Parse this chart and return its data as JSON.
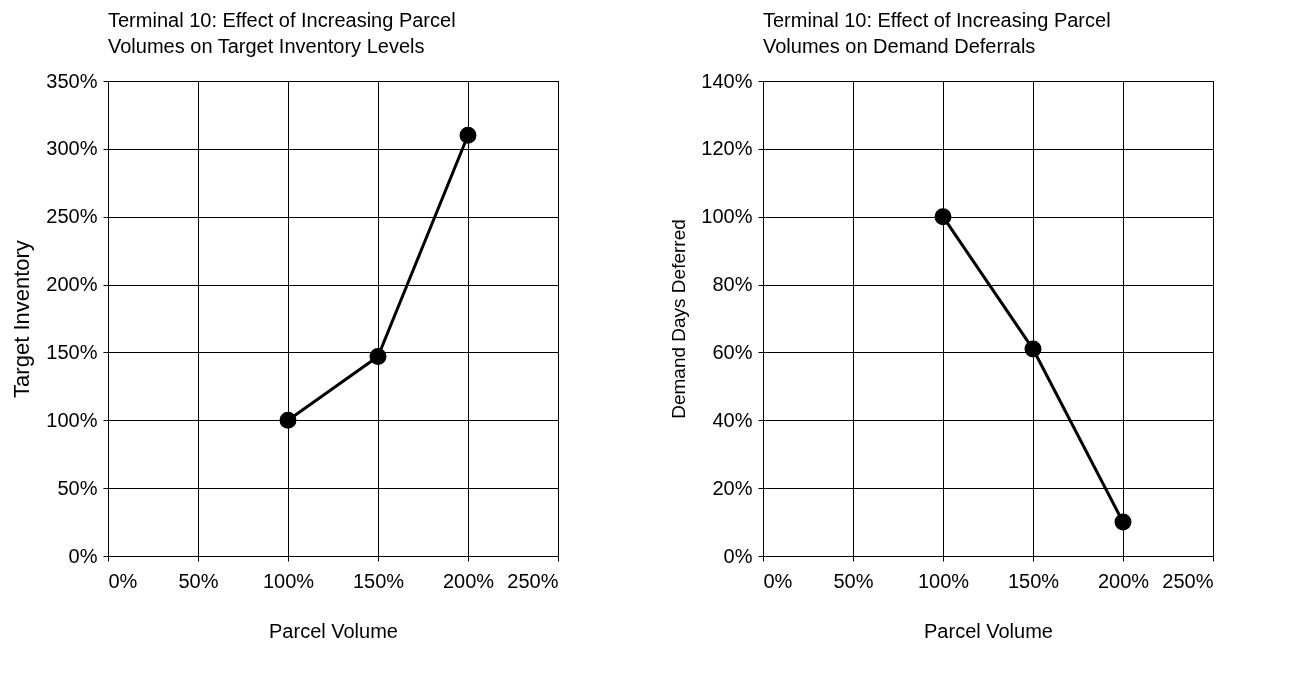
{
  "chart_data": [
    {
      "type": "line",
      "title": "Terminal 10: Effect of Increasing Parcel Volumes on Target Inventory Levels",
      "xlabel": "Parcel Volume",
      "ylabel": "Target Inventory",
      "x": [
        100,
        150,
        200
      ],
      "series": [
        {
          "color": "#000000",
          "values": [
            100,
            147,
            310
          ]
        }
      ],
      "xlim": [
        0,
        250
      ],
      "xticks": [
        {
          "value": 0,
          "label": "0%"
        },
        {
          "value": 50,
          "label": "50%"
        },
        {
          "value": 100,
          "label": "100%"
        },
        {
          "value": 150,
          "label": "150%"
        },
        {
          "value": 200,
          "label": "200%"
        },
        {
          "value": 250,
          "label": "250%"
        }
      ],
      "ylim": [
        0,
        350
      ],
      "yticks": [
        {
          "value": 0,
          "label": "0%"
        },
        {
          "value": 50,
          "label": "50%"
        },
        {
          "value": 100,
          "label": "100%"
        },
        {
          "value": 150,
          "label": "150%"
        },
        {
          "value": 200,
          "label": "200%"
        },
        {
          "value": 250,
          "label": "250%"
        },
        {
          "value": 300,
          "label": "300%"
        },
        {
          "value": 350,
          "label": "350%"
        }
      ],
      "grid": true,
      "legend": false,
      "marker": "circle",
      "line_style": "solid"
    },
    {
      "type": "line",
      "title": "Terminal 10: Effect of Increasing Parcel Volumes on Demand Deferrals",
      "xlabel": "Parcel Volume",
      "ylabel": "Demand Days Deferred",
      "x": [
        100,
        150,
        200
      ],
      "series": [
        {
          "color": "#000000",
          "values": [
            100,
            61,
            10
          ]
        }
      ],
      "xlim": [
        0,
        250
      ],
      "xticks": [
        {
          "value": 0,
          "label": "0%"
        },
        {
          "value": 50,
          "label": "50%"
        },
        {
          "value": 100,
          "label": "100%"
        },
        {
          "value": 150,
          "label": "150%"
        },
        {
          "value": 200,
          "label": "200%"
        },
        {
          "value": 250,
          "label": "250%"
        }
      ],
      "ylim": [
        0,
        140
      ],
      "yticks": [
        {
          "value": 0,
          "label": "0%"
        },
        {
          "value": 20,
          "label": "20%"
        },
        {
          "value": 40,
          "label": "40%"
        },
        {
          "value": 60,
          "label": "60%"
        },
        {
          "value": 80,
          "label": "80%"
        },
        {
          "value": 100,
          "label": "100%"
        },
        {
          "value": 120,
          "label": "120%"
        },
        {
          "value": 140,
          "label": "140%"
        }
      ],
      "grid": true,
      "legend": false,
      "marker": "circle",
      "line_style": "solid"
    }
  ]
}
